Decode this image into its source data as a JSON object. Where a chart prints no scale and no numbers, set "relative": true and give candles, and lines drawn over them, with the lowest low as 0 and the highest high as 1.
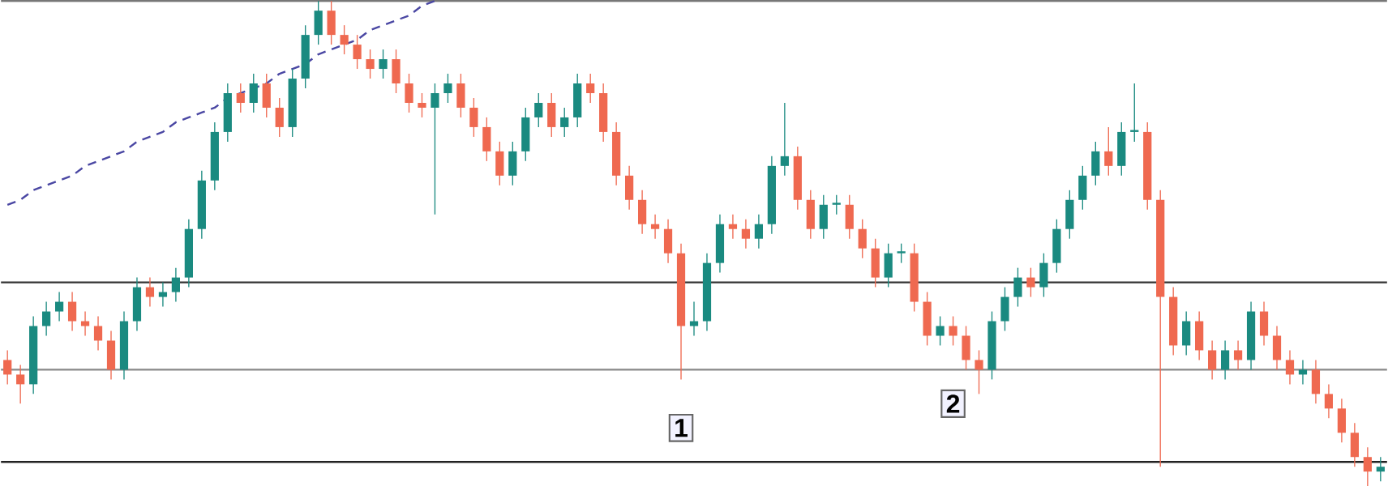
{
  "chart_data": {
    "type": "candlestick",
    "relative": true,
    "categories": [
      null,
      null,
      null,
      null,
      null,
      null,
      null,
      null,
      null,
      null,
      null,
      null,
      null,
      null,
      null,
      null,
      null,
      null,
      null,
      null,
      null,
      null,
      null,
      null,
      null,
      null,
      null,
      null,
      null,
      null,
      null,
      null,
      null,
      null,
      null,
      null,
      null,
      null,
      null,
      null,
      null,
      null,
      null,
      null,
      null,
      null,
      null,
      null,
      null,
      null,
      null,
      null,
      null,
      null,
      null,
      null,
      null,
      null,
      null,
      null,
      null,
      null,
      null,
      null,
      null,
      null,
      null,
      null,
      null,
      null,
      null,
      null,
      null,
      null,
      null,
      null,
      null,
      null,
      null,
      null,
      null,
      null,
      null,
      null,
      null,
      null,
      null,
      null,
      null,
      null,
      null,
      null,
      null,
      null,
      null,
      null,
      null,
      null,
      null,
      null,
      null,
      null,
      null,
      null,
      null,
      null,
      null
    ],
    "ohlc": [
      [
        0.26,
        0.28,
        0.21,
        0.23
      ],
      [
        0.23,
        0.25,
        0.17,
        0.21
      ],
      [
        0.21,
        0.35,
        0.19,
        0.33
      ],
      [
        0.33,
        0.38,
        0.31,
        0.36
      ],
      [
        0.36,
        0.4,
        0.34,
        0.38
      ],
      [
        0.38,
        0.4,
        0.32,
        0.34
      ],
      [
        0.34,
        0.36,
        0.31,
        0.33
      ],
      [
        0.33,
        0.35,
        0.28,
        0.3
      ],
      [
        0.3,
        0.32,
        0.22,
        0.24
      ],
      [
        0.24,
        0.36,
        0.22,
        0.34
      ],
      [
        0.34,
        0.43,
        0.32,
        0.41
      ],
      [
        0.41,
        0.43,
        0.37,
        0.39
      ],
      [
        0.39,
        0.42,
        0.37,
        0.4
      ],
      [
        0.4,
        0.45,
        0.38,
        0.43
      ],
      [
        0.43,
        0.55,
        0.41,
        0.53
      ],
      [
        0.53,
        0.65,
        0.51,
        0.63
      ],
      [
        0.63,
        0.75,
        0.61,
        0.73
      ],
      [
        0.73,
        0.83,
        0.71,
        0.81
      ],
      [
        0.81,
        0.83,
        0.77,
        0.79
      ],
      [
        0.79,
        0.85,
        0.77,
        0.83
      ],
      [
        0.83,
        0.85,
        0.76,
        0.78
      ],
      [
        0.78,
        0.8,
        0.72,
        0.74
      ],
      [
        0.74,
        0.86,
        0.72,
        0.84
      ],
      [
        0.84,
        0.95,
        0.82,
        0.93
      ],
      [
        0.93,
        1.0,
        0.91,
        0.98
      ],
      [
        0.98,
        1.0,
        0.91,
        0.93
      ],
      [
        0.93,
        0.95,
        0.89,
        0.91
      ],
      [
        0.91,
        0.93,
        0.86,
        0.88
      ],
      [
        0.88,
        0.9,
        0.84,
        0.86
      ],
      [
        0.86,
        0.9,
        0.84,
        0.88
      ],
      [
        0.88,
        0.9,
        0.81,
        0.83
      ],
      [
        0.83,
        0.85,
        0.77,
        0.79
      ],
      [
        0.79,
        0.81,
        0.76,
        0.78
      ],
      [
        0.78,
        0.83,
        0.56,
        0.81
      ],
      [
        0.81,
        0.85,
        0.79,
        0.83
      ],
      [
        0.83,
        0.85,
        0.76,
        0.78
      ],
      [
        0.78,
        0.8,
        0.72,
        0.74
      ],
      [
        0.74,
        0.76,
        0.67,
        0.69
      ],
      [
        0.69,
        0.71,
        0.62,
        0.64
      ],
      [
        0.64,
        0.71,
        0.62,
        0.69
      ],
      [
        0.69,
        0.78,
        0.67,
        0.76
      ],
      [
        0.76,
        0.81,
        0.74,
        0.79
      ],
      [
        0.79,
        0.81,
        0.72,
        0.74
      ],
      [
        0.74,
        0.78,
        0.72,
        0.76
      ],
      [
        0.76,
        0.85,
        0.74,
        0.83
      ],
      [
        0.83,
        0.85,
        0.79,
        0.81
      ],
      [
        0.81,
        0.83,
        0.71,
        0.73
      ],
      [
        0.73,
        0.75,
        0.62,
        0.64
      ],
      [
        0.64,
        0.66,
        0.57,
        0.59
      ],
      [
        0.59,
        0.61,
        0.52,
        0.54
      ],
      [
        0.54,
        0.56,
        0.51,
        0.53
      ],
      [
        0.53,
        0.55,
        0.46,
        0.48
      ],
      [
        0.48,
        0.5,
        0.22,
        0.33
      ],
      [
        0.33,
        0.38,
        0.31,
        0.34
      ],
      [
        0.34,
        0.48,
        0.32,
        0.46
      ],
      [
        0.46,
        0.56,
        0.44,
        0.54
      ],
      [
        0.54,
        0.56,
        0.51,
        0.53
      ],
      [
        0.53,
        0.55,
        0.49,
        0.51
      ],
      [
        0.51,
        0.56,
        0.49,
        0.54
      ],
      [
        0.54,
        0.68,
        0.52,
        0.66
      ],
      [
        0.66,
        0.79,
        0.64,
        0.68
      ],
      [
        0.68,
        0.7,
        0.57,
        0.59
      ],
      [
        0.59,
        0.61,
        0.51,
        0.53
      ],
      [
        0.53,
        0.6,
        0.51,
        0.58
      ],
      [
        0.58,
        0.6,
        0.56,
        0.58
      ],
      [
        0.58,
        0.6,
        0.51,
        0.53
      ],
      [
        0.53,
        0.55,
        0.47,
        0.49
      ],
      [
        0.49,
        0.51,
        0.41,
        0.43
      ],
      [
        0.43,
        0.5,
        0.41,
        0.48
      ],
      [
        0.48,
        0.5,
        0.46,
        0.48
      ],
      [
        0.48,
        0.5,
        0.36,
        0.38
      ],
      [
        0.38,
        0.4,
        0.29,
        0.31
      ],
      [
        0.31,
        0.35,
        0.29,
        0.33
      ],
      [
        0.33,
        0.35,
        0.29,
        0.31
      ],
      [
        0.31,
        0.33,
        0.24,
        0.26
      ],
      [
        0.26,
        0.28,
        0.19,
        0.24
      ],
      [
        0.24,
        0.36,
        0.22,
        0.34
      ],
      [
        0.34,
        0.41,
        0.32,
        0.39
      ],
      [
        0.39,
        0.45,
        0.37,
        0.43
      ],
      [
        0.43,
        0.45,
        0.39,
        0.41
      ],
      [
        0.41,
        0.48,
        0.39,
        0.46
      ],
      [
        0.46,
        0.55,
        0.44,
        0.53
      ],
      [
        0.53,
        0.61,
        0.51,
        0.59
      ],
      [
        0.59,
        0.66,
        0.57,
        0.64
      ],
      [
        0.64,
        0.71,
        0.62,
        0.69
      ],
      [
        0.69,
        0.74,
        0.64,
        0.66
      ],
      [
        0.66,
        0.75,
        0.64,
        0.73
      ],
      [
        0.73,
        0.83,
        0.71,
        0.73
      ],
      [
        0.73,
        0.75,
        0.57,
        0.59
      ],
      [
        0.59,
        0.61,
        0.04,
        0.39
      ],
      [
        0.39,
        0.41,
        0.27,
        0.29
      ],
      [
        0.29,
        0.36,
        0.27,
        0.34
      ],
      [
        0.34,
        0.36,
        0.26,
        0.28
      ],
      [
        0.28,
        0.3,
        0.22,
        0.24
      ],
      [
        0.24,
        0.3,
        0.22,
        0.28
      ],
      [
        0.28,
        0.3,
        0.24,
        0.26
      ],
      [
        0.26,
        0.38,
        0.24,
        0.36
      ],
      [
        0.36,
        0.38,
        0.29,
        0.31
      ],
      [
        0.31,
        0.33,
        0.24,
        0.26
      ],
      [
        0.26,
        0.28,
        0.21,
        0.23
      ],
      [
        0.23,
        0.26,
        0.21,
        0.24
      ],
      [
        0.24,
        0.26,
        0.17,
        0.19
      ],
      [
        0.19,
        0.21,
        0.14,
        0.16
      ],
      [
        0.16,
        0.18,
        0.09,
        0.11
      ],
      [
        0.11,
        0.13,
        0.04,
        0.06
      ],
      [
        0.06,
        0.08,
        0.0,
        0.03
      ],
      [
        0.03,
        0.06,
        0.01,
        0.04
      ]
    ],
    "series": [
      {
        "type": "line",
        "color": "#4a47a3",
        "line_style": "dashed",
        "values": [
          0.58,
          0.59,
          0.61,
          0.62,
          0.63,
          0.64,
          0.66,
          0.67,
          0.68,
          0.69,
          0.71,
          0.72,
          0.73,
          0.75,
          0.76,
          0.77,
          0.78,
          0.8,
          0.81,
          0.82,
          0.83,
          0.85,
          0.86,
          0.87,
          0.89,
          0.9,
          0.91,
          0.92,
          0.94,
          0.95,
          0.96,
          0.97,
          0.99,
          1.0,
          null,
          null,
          null,
          null,
          null,
          null,
          null,
          null,
          null,
          null,
          null,
          null,
          null,
          null,
          null,
          null,
          null,
          null,
          null,
          null,
          null,
          null,
          null,
          null,
          null,
          null,
          null,
          null,
          null,
          null,
          null,
          null,
          null,
          null,
          null,
          null,
          null,
          null,
          null,
          null,
          null,
          null,
          null,
          null,
          null,
          null,
          null,
          null,
          null,
          null,
          null,
          null,
          null,
          null,
          null,
          null,
          null,
          null,
          null,
          null,
          null,
          null,
          null,
          null,
          null,
          null,
          null,
          null,
          null,
          null,
          null,
          null,
          null
        ]
      }
    ],
    "ref_lines": [
      {
        "axis": "y",
        "value": 1.0,
        "color": "#777777"
      },
      {
        "axis": "y",
        "value": 0.42,
        "color": "#333333"
      },
      {
        "axis": "y",
        "value": 0.24,
        "color": "#888888"
      },
      {
        "axis": "y",
        "value": 0.05,
        "color": "#222222"
      }
    ],
    "annotations": [
      "1",
      "2"
    ]
  }
}
